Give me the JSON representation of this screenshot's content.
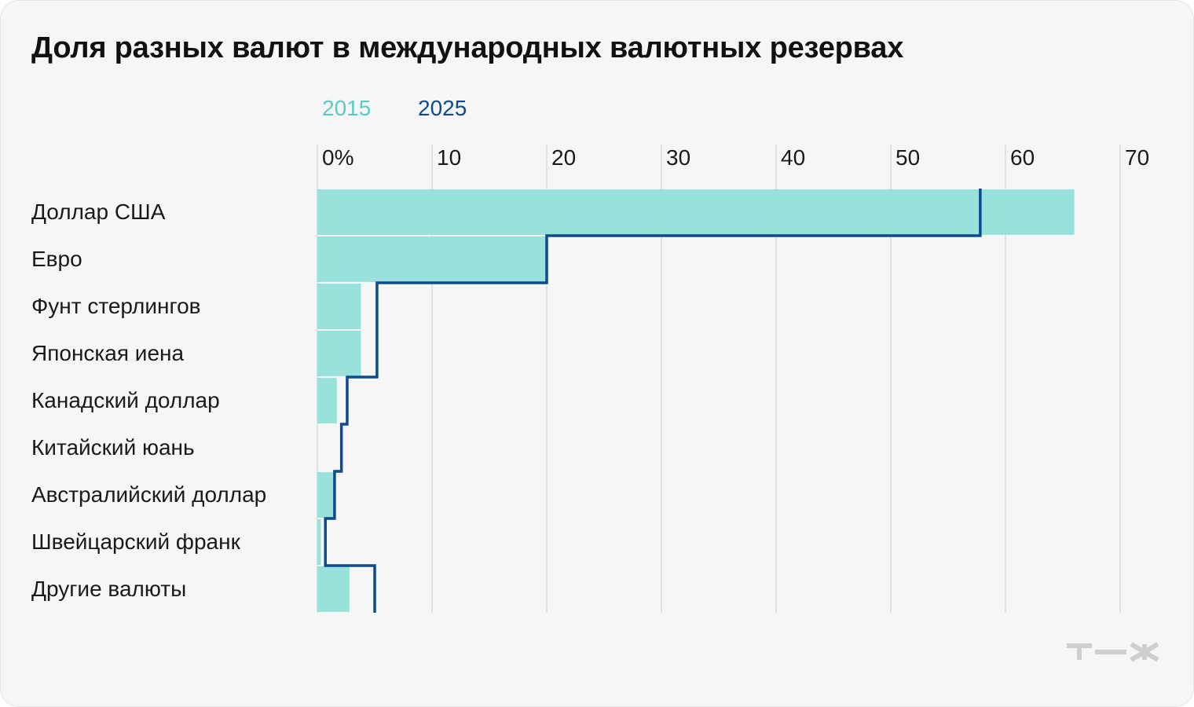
{
  "chart_data": {
    "type": "bar",
    "title": "Доля разных валют в международных валютных резервах",
    "categories": [
      "Доллар США",
      "Евро",
      "Фунт стерлингов",
      "Японская иена",
      "Канадский доллар",
      "Китайский юань",
      "Австралийский доллар",
      "Швейцарский франк",
      "Другие валюты"
    ],
    "series": [
      {
        "name": "2015",
        "style": "bar",
        "color": "#93e0da",
        "values": [
          66,
          20,
          3.8,
          3.8,
          1.7,
          0,
          1.4,
          0.3,
          2.8
        ]
      },
      {
        "name": "2025",
        "style": "step-line",
        "color": "#0d4a8f",
        "values": [
          57.8,
          20,
          5.2,
          5.2,
          2.6,
          2.1,
          1.5,
          0.7,
          5
        ]
      }
    ],
    "x_ticks": [
      "0%",
      "10",
      "20",
      "30",
      "40",
      "50",
      "60",
      "70"
    ],
    "xlim": [
      0,
      70
    ],
    "grid": true,
    "legend_position": "top"
  },
  "colors": {
    "card_bg": "#f6f6f6",
    "grid": "#dcdcdc",
    "bar_2015": "#93e0da",
    "line_2025": "#0d4a8f",
    "legend_2015": "#5ccac2",
    "logo": "#cfcfcf"
  },
  "logo": {
    "icon": "tzh-logo-icon"
  }
}
